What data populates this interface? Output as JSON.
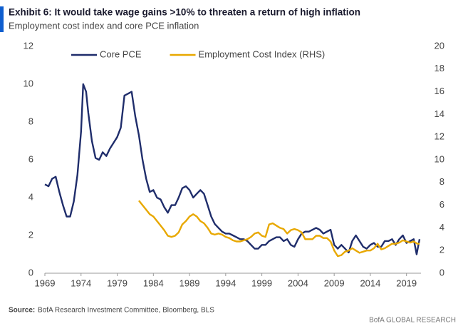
{
  "chart_data": {
    "type": "line",
    "title": "Exhibit 6: It would take wage gains >10% to threaten a return of high inflation",
    "subtitle": "Employment cost index and core PCE inflation",
    "source_label": "Source:",
    "source": "BofA Research Investment Committee, Bloomberg, BLS",
    "footer": "BofA GLOBAL RESEARCH",
    "legend": "top",
    "xlim": [
      1969,
      2021
    ],
    "xticks": [
      1969,
      1974,
      1979,
      1984,
      1989,
      1994,
      1999,
      2004,
      2009,
      2014,
      2019
    ],
    "ylim": [
      0,
      12
    ],
    "yticks": [
      0,
      2,
      4,
      6,
      8,
      10,
      12
    ],
    "y2lim": [
      0,
      20
    ],
    "y2ticks": [
      0,
      2,
      4,
      6,
      8,
      10,
      12,
      14,
      16,
      18,
      20
    ],
    "series": [
      {
        "name": "Core PCE",
        "color": "#1f2d6b",
        "x": [
          1969.0,
          1969.5,
          1970.0,
          1970.5,
          1971.0,
          1971.5,
          1972.0,
          1972.5,
          1973.0,
          1973.5,
          1974.0,
          1974.3,
          1974.7,
          1975.0,
          1975.5,
          1976.0,
          1976.5,
          1977.0,
          1977.5,
          1978.0,
          1978.5,
          1979.0,
          1979.5,
          1980.0,
          1980.5,
          1981.0,
          1981.5,
          1982.0,
          1982.5,
          1983.0,
          1983.5,
          1984.0,
          1984.5,
          1985.0,
          1985.5,
          1986.0,
          1986.5,
          1987.0,
          1987.5,
          1988.0,
          1988.5,
          1989.0,
          1989.5,
          1990.0,
          1990.5,
          1991.0,
          1991.5,
          1992.0,
          1992.5,
          1993.0,
          1993.5,
          1994.0,
          1994.5,
          1995.0,
          1995.5,
          1996.0,
          1996.5,
          1997.0,
          1997.5,
          1998.0,
          1998.5,
          1999.0,
          1999.5,
          2000.0,
          2000.5,
          2001.0,
          2001.5,
          2002.0,
          2002.5,
          2003.0,
          2003.5,
          2004.0,
          2004.5,
          2005.0,
          2005.5,
          2006.0,
          2006.5,
          2007.0,
          2007.5,
          2008.0,
          2008.5,
          2009.0,
          2009.5,
          2010.0,
          2010.5,
          2011.0,
          2011.5,
          2012.0,
          2012.5,
          2013.0,
          2013.5,
          2014.0,
          2014.5,
          2015.0,
          2015.5,
          2016.0,
          2016.5,
          2017.0,
          2017.5,
          2018.0,
          2018.5,
          2019.0,
          2019.5,
          2020.0,
          2020.4,
          2020.8
        ],
        "values": [
          4.7,
          4.6,
          5.0,
          5.1,
          4.3,
          3.6,
          3.0,
          3.0,
          3.8,
          5.2,
          7.5,
          10.0,
          9.6,
          8.5,
          7.0,
          6.1,
          6.0,
          6.4,
          6.2,
          6.6,
          6.9,
          7.2,
          7.7,
          9.4,
          9.5,
          9.6,
          8.3,
          7.3,
          6.0,
          5.0,
          4.3,
          4.4,
          4.0,
          3.9,
          3.5,
          3.2,
          3.6,
          3.6,
          4.0,
          4.5,
          4.6,
          4.4,
          4.0,
          4.2,
          4.4,
          4.2,
          3.6,
          3.0,
          2.6,
          2.4,
          2.2,
          2.1,
          2.1,
          2.0,
          1.9,
          1.8,
          1.8,
          1.7,
          1.5,
          1.3,
          1.3,
          1.5,
          1.5,
          1.7,
          1.8,
          1.9,
          1.9,
          1.7,
          1.8,
          1.5,
          1.4,
          1.8,
          2.1,
          2.2,
          2.2,
          2.3,
          2.4,
          2.3,
          2.1,
          2.2,
          2.3,
          1.5,
          1.3,
          1.5,
          1.3,
          1.1,
          1.7,
          2.0,
          1.7,
          1.4,
          1.3,
          1.5,
          1.6,
          1.4,
          1.4,
          1.7,
          1.7,
          1.8,
          1.5,
          1.8,
          2.0,
          1.6,
          1.7,
          1.8,
          1.0,
          1.8
        ]
      },
      {
        "name": "Employment Cost Index (RHS)",
        "color": "#e8a800",
        "axis": "y2",
        "x": [
          1982.0,
          1982.5,
          1983.0,
          1983.5,
          1984.0,
          1984.5,
          1985.0,
          1985.5,
          1986.0,
          1986.5,
          1987.0,
          1987.5,
          1988.0,
          1988.5,
          1989.0,
          1989.5,
          1990.0,
          1990.5,
          1991.0,
          1991.5,
          1992.0,
          1992.5,
          1993.0,
          1993.5,
          1994.0,
          1994.5,
          1995.0,
          1995.5,
          1996.0,
          1996.5,
          1997.0,
          1997.5,
          1998.0,
          1998.5,
          1999.0,
          1999.5,
          2000.0,
          2000.5,
          2001.0,
          2001.5,
          2002.0,
          2002.5,
          2003.0,
          2003.5,
          2004.0,
          2004.5,
          2005.0,
          2005.5,
          2006.0,
          2006.5,
          2007.0,
          2007.5,
          2008.0,
          2008.5,
          2009.0,
          2009.5,
          2010.0,
          2010.5,
          2011.0,
          2011.5,
          2012.0,
          2012.5,
          2013.0,
          2013.5,
          2014.0,
          2014.5,
          2015.0,
          2015.5,
          2016.0,
          2016.5,
          2017.0,
          2017.5,
          2018.0,
          2018.5,
          2019.0,
          2019.5,
          2020.0,
          2020.5,
          2020.8
        ],
        "values": [
          6.4,
          6.0,
          5.6,
          5.2,
          5.0,
          4.6,
          4.2,
          3.8,
          3.3,
          3.2,
          3.3,
          3.6,
          4.3,
          4.6,
          5.0,
          5.2,
          5.0,
          4.6,
          4.4,
          4.0,
          3.5,
          3.4,
          3.5,
          3.4,
          3.2,
          3.1,
          2.9,
          2.8,
          2.8,
          2.9,
          3.0,
          3.2,
          3.5,
          3.6,
          3.3,
          3.2,
          4.3,
          4.4,
          4.2,
          4.0,
          3.9,
          3.5,
          3.8,
          3.9,
          3.8,
          3.6,
          3.0,
          3.0,
          3.0,
          3.3,
          3.3,
          3.1,
          3.1,
          2.8,
          2.0,
          1.5,
          1.6,
          1.9,
          2.0,
          2.2,
          2.0,
          1.8,
          1.9,
          2.0,
          2.0,
          2.2,
          2.6,
          2.1,
          2.2,
          2.4,
          2.6,
          2.6,
          2.7,
          2.9,
          2.8,
          2.7,
          2.8,
          2.6,
          2.6
        ]
      }
    ]
  }
}
